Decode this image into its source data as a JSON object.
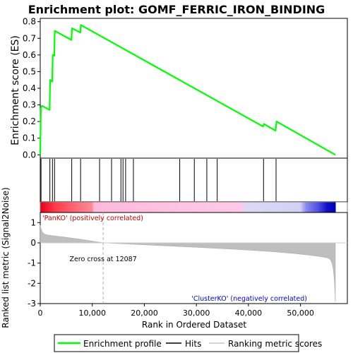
{
  "chart_data": {
    "type": "line",
    "title": "Enrichment plot: GOMF_FERRIC_IRON_BINDING",
    "top_panel": {
      "ylabel": "Enrichment score (ES)",
      "ylim": [
        -0.02,
        0.82
      ],
      "yticks": [
        "0.0",
        "0.1",
        "0.2",
        "0.3",
        "0.4",
        "0.5",
        "0.6",
        "0.7",
        "0.8"
      ],
      "ytick_values": [
        0,
        0.1,
        0.2,
        0.3,
        0.4,
        0.5,
        0.6,
        0.7,
        0.8
      ],
      "series": [
        {
          "name": "Enrichment profile",
          "color": "#00ff00",
          "x": [
            0,
            120,
            300,
            1800,
            1900,
            2300,
            2400,
            2700,
            2800,
            6000,
            6100,
            7700,
            7800,
            42800,
            43000,
            45200,
            45400,
            56700
          ],
          "y": [
            0.0,
            0.28,
            0.295,
            0.27,
            0.45,
            0.44,
            0.6,
            0.595,
            0.745,
            0.69,
            0.76,
            0.735,
            0.78,
            0.17,
            0.185,
            0.145,
            0.2,
            0.0
          ]
        }
      ]
    },
    "hits": {
      "name": "Hits",
      "x": [
        150,
        1850,
        2350,
        2750,
        6050,
        7750,
        11400,
        13700,
        15500,
        15900,
        16400,
        17900,
        26800,
        29600,
        32000,
        34000,
        42900,
        45300
      ]
    },
    "bottom_panel": {
      "ylabel": "Ranked list metric (Signal2Noise)",
      "ylim": [
        -3,
        1.5
      ],
      "yticks": [
        "1",
        "0",
        "-1",
        "-2",
        "-3"
      ],
      "ytick_values": [
        1,
        0,
        -1,
        -2,
        -3
      ],
      "zero_cross_label": "Zero cross at 12087",
      "zero_cross": 12087,
      "pos_label": "'PanKO' (positively correlated)",
      "neg_label": "'ClusterKO' (negatively correlated)",
      "metric_name": "Ranking metric scores"
    },
    "xaxis": {
      "xlabel": "Rank in Ordered Dataset",
      "xlim": [
        0,
        59000
      ],
      "xticks": [
        "0",
        "10,000",
        "20,000",
        "30,000",
        "40,000",
        "50,000"
      ],
      "xtick_values": [
        0,
        10000,
        20000,
        30000,
        40000,
        50000
      ],
      "n_genes": 56700
    },
    "legend": {
      "placement": "bottom",
      "items": [
        "Enrichment profile",
        "Hits",
        "Ranking metric scores"
      ]
    },
    "colors": {
      "profile": "#00ff00",
      "hits": "#000000",
      "pos_label": "#cc0000",
      "neg_label": "#0000cc",
      "metric_fill": "#bebebe"
    }
  }
}
